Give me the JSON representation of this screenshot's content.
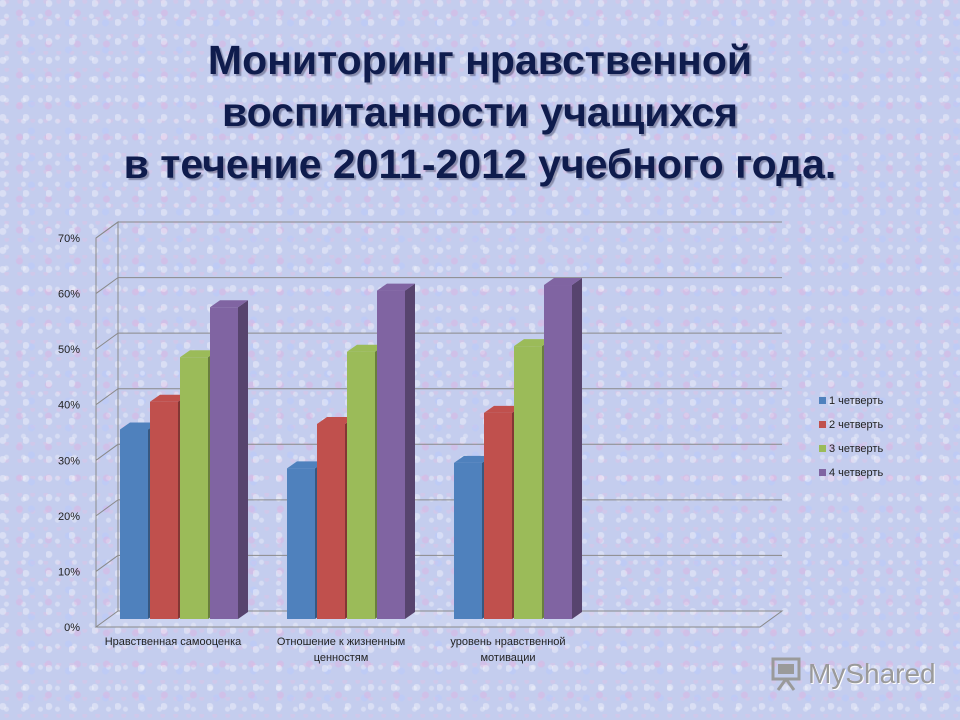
{
  "title_lines": [
    "Мониторинг нравственной",
    "воспитанности учащихся",
    "в течение 2011-2012 учебного года."
  ],
  "chart_data": {
    "type": "bar",
    "categories": [
      [
        "Нравственная самооценка"
      ],
      [
        "Отношение к жизненным",
        "ценностям"
      ],
      [
        "уровень нравственной",
        "мотивации"
      ]
    ],
    "series": [
      {
        "name": "1 четверть",
        "color": "#4f81bd",
        "values": [
          35,
          28,
          29
        ]
      },
      {
        "name": "2 четверть",
        "color": "#c0504d",
        "values": [
          40,
          36,
          38
        ]
      },
      {
        "name": "3 четверть",
        "color": "#9bbb59",
        "values": [
          48,
          49,
          50
        ]
      },
      {
        "name": "4 четверть",
        "color": "#8064a2",
        "values": [
          57,
          60,
          61
        ]
      }
    ],
    "yticks": [
      "0%",
      "10%",
      "20%",
      "30%",
      "40%",
      "50%",
      "60%",
      "70%"
    ],
    "ylim": [
      0,
      70
    ],
    "grid": true,
    "legend": "right"
  },
  "watermark": {
    "text": "MyShared",
    "icon": "presentation-board-icon"
  }
}
